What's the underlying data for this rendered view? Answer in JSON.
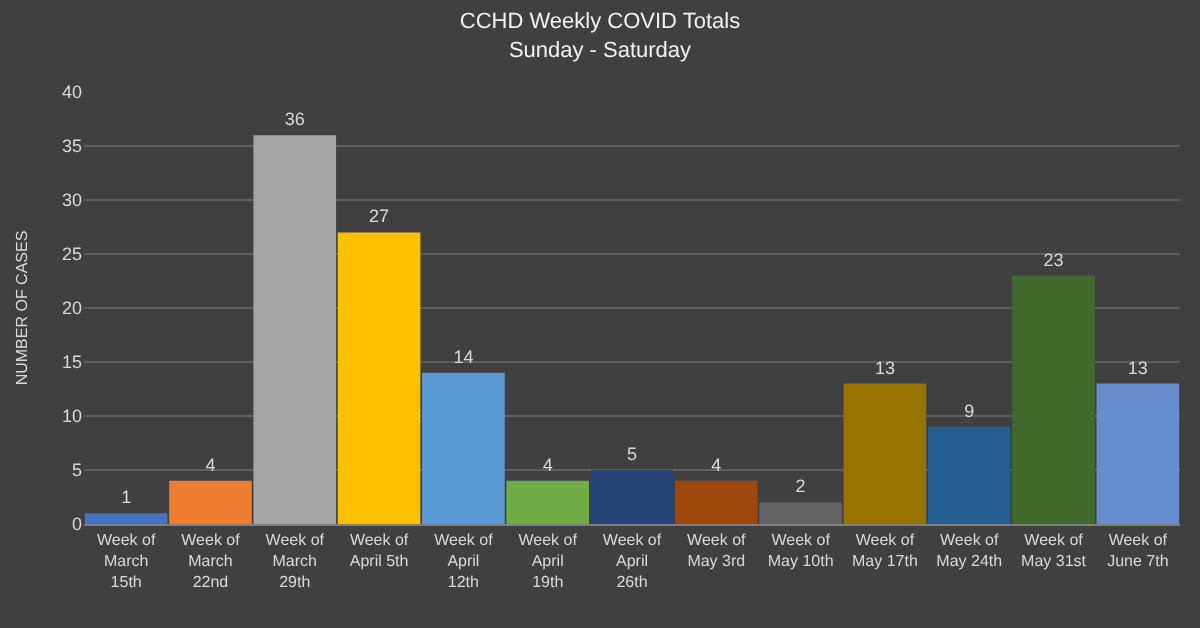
{
  "chart_data": {
    "type": "bar",
    "title": "CCHD Weekly COVID Totals",
    "subtitle": "Sunday - Saturday",
    "ylabel": "NUMBER OF CASES",
    "categories": [
      "Week of March 15th",
      "Week of March 22nd",
      "Week of March 29th",
      "Week of April 5th",
      "Week of April 12th",
      "Week of April 19th",
      "Week of April 26th",
      "Week of May 3rd",
      "Week of May 10th",
      "Week of May 17th",
      "Week of May 24th",
      "Week of May 31st",
      "Week of June 7th"
    ],
    "values": [
      1,
      4,
      36,
      27,
      14,
      4,
      5,
      4,
      2,
      13,
      9,
      23,
      13
    ],
    "colors": [
      "#4472c4",
      "#ed7d31",
      "#a5a5a5",
      "#ffc000",
      "#5b9bd5",
      "#70ad47",
      "#264478",
      "#9e480e",
      "#636363",
      "#997300",
      "#255e91",
      "#43682b",
      "#698ed0"
    ],
    "ylim": [
      0,
      40
    ],
    "yticks": [
      0,
      5,
      10,
      15,
      20,
      25,
      30,
      35,
      40
    ],
    "grid": "y",
    "legend": false,
    "data_labels": true
  }
}
